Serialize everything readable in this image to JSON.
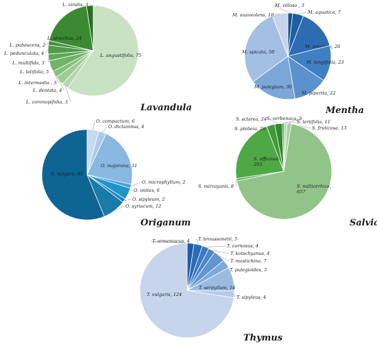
{
  "chart_data": [
    {
      "type": "pie",
      "title": "Lavandula",
      "slices": [
        {
          "name": "L. angustifolia",
          "value": 75,
          "label": "L. angustifolia, 75",
          "color": "#c8e2c3"
        },
        {
          "name": "L. coronopifolia",
          "value": 3,
          "label": "L. coronopifolia, 3",
          "color": "#b3d8ad"
        },
        {
          "name": "L. dentata",
          "value": 4,
          "label": "L. dentata, 4",
          "color": "#9dcd96"
        },
        {
          "name": "L. intermedia",
          "value": 3,
          "label": "L. intermedia , 3",
          "color": "#86c17e"
        },
        {
          "name": "L. latifolia",
          "value": 5,
          "label": "L. latifolia, 5",
          "color": "#70b468"
        },
        {
          "name": "L. multifida",
          "value": 3,
          "label": "L. multifida, 3",
          "color": "#5ea857"
        },
        {
          "name": "L. pedunculata",
          "value": 4,
          "label": "L. pedunculata, 4",
          "color": "#4f9d48"
        },
        {
          "name": "L. pubescens",
          "value": 2,
          "label": "L. pubescens, 2",
          "color": "#43933c"
        },
        {
          "name": "L. stoechas",
          "value": 24,
          "label": "L. stoechas, 24",
          "color": "#3a8a33"
        },
        {
          "name": "L. viridis",
          "value": 3,
          "label": "L. viridis, 3",
          "color": "#2a6e26"
        }
      ]
    },
    {
      "type": "pie",
      "title": "Mentha",
      "slices": [
        {
          "name": "M. villosa",
          "value": 3,
          "label": "M. villosa , 3",
          "color": "#174f8f"
        },
        {
          "name": "M. aquatica",
          "value": 7,
          "label": "M. aquatica, 7",
          "color": "#1d5fa6"
        },
        {
          "name": "M. arvensis",
          "value": 26,
          "label": "M. arvensis, 26",
          "color": "#2c6cb3"
        },
        {
          "name": "M. longifolia",
          "value": 23,
          "label": "M. longifolia, 23",
          "color": "#3f7fc3"
        },
        {
          "name": "M. piperita",
          "value": 22,
          "label": "M. piperita, 22",
          "color": "#5b92ce"
        },
        {
          "name": "M. pulegium",
          "value": 30,
          "label": "M. pulegium, 30",
          "color": "#7aa6d8"
        },
        {
          "name": "M. spicata",
          "value": 50,
          "label": "M. spicata, 50",
          "color": "#a3bfe3"
        },
        {
          "name": "M. suaveolens",
          "value": 10,
          "label": "M. suaveolens, 10",
          "color": "#c7d5ec"
        }
      ]
    },
    {
      "type": "pie",
      "title": "Origanum",
      "slices": [
        {
          "name": "O. compactum",
          "value": 6,
          "label": "O. compactum, 6",
          "color": "#c4dcef"
        },
        {
          "name": "O. dictamnus",
          "value": 4,
          "label": "O. dictamnus, 4",
          "color": "#a9cceb"
        },
        {
          "name": "O. majorana",
          "value": 31,
          "label": "O. majorana, 31",
          "color": "#8ab8e0"
        },
        {
          "name": "O. microphyllum",
          "value": 2,
          "label": "O. microphyllum, 2",
          "color": "#3fa3d6"
        },
        {
          "name": "O. onites",
          "value": 6,
          "label": "O. onites, 6",
          "color": "#1e94c9"
        },
        {
          "name": "O. sipyleum",
          "value": 2,
          "label": "O. sipyleum, 2",
          "color": "#2487bb"
        },
        {
          "name": "O. syriacum",
          "value": 12,
          "label": "O. syriacum, 12",
          "color": "#1a7bab"
        },
        {
          "name": "O. vulgare",
          "value": 81,
          "label": "O. vulgare, 81",
          "color": "#0e6594"
        }
      ]
    },
    {
      "type": "pie",
      "title": "Salvia",
      "slices": [
        {
          "name": "S. leriifolia",
          "value": 11,
          "label": "S. leriifolia, 11",
          "color": "#b8dbb0"
        },
        {
          "name": "S. fruticosa",
          "value": 13,
          "label": "S. fruticosa, 13",
          "color": "#a4d09b"
        },
        {
          "name": "S. miltiorrhiza",
          "value": 657,
          "label": "S. miltiorrhiza,\n657",
          "color": "#92c48a"
        },
        {
          "name": "S. mirzayanii",
          "value": 8,
          "label": "S. mirzayanii, 8",
          "color": "#6eb466"
        },
        {
          "name": "S. officinalis",
          "value": 205,
          "label": "S. officinalis,\n205",
          "color": "#4ea846"
        },
        {
          "name": "S. plebeia",
          "value": 26,
          "label": "S. plebeia, 26",
          "color": "#3f9a38"
        },
        {
          "name": "S. sclarea",
          "value": 24,
          "label": "S. sclarea, 24",
          "color": "#2f8a2b"
        },
        {
          "name": "S. verbenaca",
          "value": 5,
          "label": "S. verbenaca, 5",
          "color": "#247a22"
        }
      ]
    },
    {
      "type": "pie",
      "title": "Thymus",
      "slices": [
        {
          "name": "T. armeniacus",
          "value": 4,
          "label": "T. armeniacus, 4",
          "color": "#1d5ea8"
        },
        {
          "name": "T. broussonetii",
          "value": 5,
          "label": "T. broussonetii, 5",
          "color": "#2a6cb6"
        },
        {
          "name": "T. carnosus",
          "value": 4,
          "label": "T. carnosus, 4",
          "color": "#3a78bf"
        },
        {
          "name": "T. kotschyanus",
          "value": 4,
          "label": "T. kotschyanus, 4",
          "color": "#4c86c7"
        },
        {
          "name": "T. mastichina",
          "value": 7,
          "label": "T. mastichina, 7",
          "color": "#6196d0"
        },
        {
          "name": "T. pulegioides",
          "value": 5,
          "label": "T. pulegioides, 5",
          "color": "#7ea9d8"
        },
        {
          "name": "T. serpyllum",
          "value": 14,
          "label": "T. serpyllum, 14",
          "color": "#9bbbe0"
        },
        {
          "name": "T. sipyleus",
          "value": 4,
          "label": "T. sipyleus, 4",
          "color": "#b5cbe8"
        },
        {
          "name": "T. vulgaris",
          "value": 124,
          "label": "T. vulgaris, 124",
          "color": "#c6d4ec"
        }
      ]
    }
  ]
}
